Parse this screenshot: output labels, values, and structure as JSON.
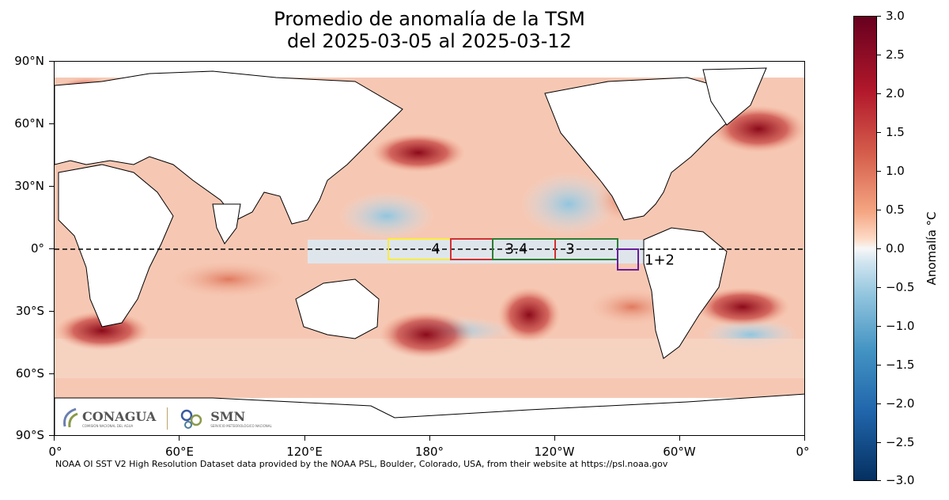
{
  "title": {
    "line1": "Promedio de anomalía de la TSM",
    "line2": "del 2025-03-05 al 2025-03-12"
  },
  "axes": {
    "yticks": [
      "90°N",
      "60°N",
      "30°N",
      "0°",
      "30°S",
      "60°S",
      "90°S"
    ],
    "xticks": [
      "0°",
      "60°E",
      "120°E",
      "180°",
      "120°W",
      "60°W",
      "0°"
    ]
  },
  "colorbar": {
    "label": "Anomalía °C",
    "ticks": [
      "3.0",
      "2.5",
      "2.0",
      "1.5",
      "1.0",
      "0.5",
      "0.0",
      "−0.5",
      "−1.0",
      "−1.5",
      "−2.0",
      "−2.5",
      "−3.0"
    ],
    "range": [
      -3.0,
      3.0
    ],
    "colormap": "RdBu_r"
  },
  "nino_regions": [
    {
      "label": "4",
      "color": "#ffeb3b"
    },
    {
      "label": "3.4",
      "color": "#d32f2f"
    },
    {
      "label": "3",
      "color": "#2e7d32"
    },
    {
      "label": "1+2",
      "color": "#6a1b9a"
    }
  ],
  "credit": "NOAA OI SST V2 High Resolution Dataset data provided by the NOAA PSL, Boulder, Colorado, USA, from their website at https://psl.noaa.gov",
  "logos": {
    "conagua": "CONAGUA",
    "conagua_sub": "COMISIÓN NACIONAL DEL AGUA",
    "smn": "SMN",
    "smn_sub": "SERVICIO METEOROLÓGICO NACIONAL"
  },
  "colors": {
    "warm": "#b2182b",
    "cool": "#2166ac",
    "land": "#ffffff"
  }
}
